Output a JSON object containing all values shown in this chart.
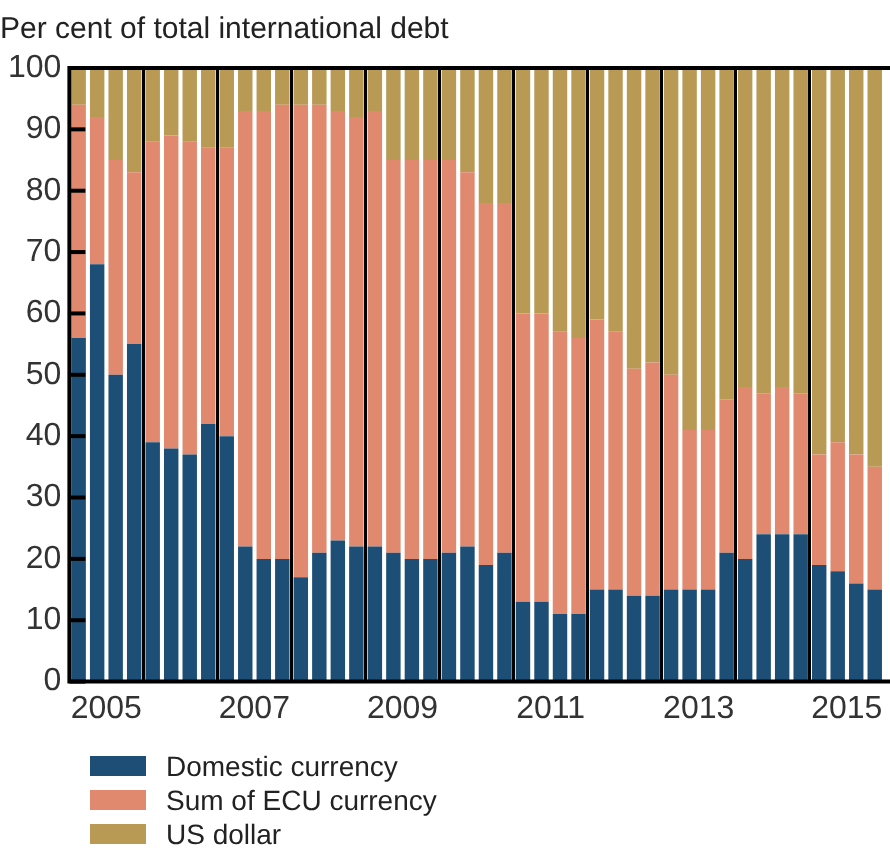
{
  "chart_data": {
    "type": "bar",
    "title": "Per cent of total international debt",
    "stacked": true,
    "grid": "x",
    "legend": "bottom",
    "categories": [
      null,
      "2005",
      null,
      null,
      null,
      null,
      null,
      null,
      null,
      "2007",
      null,
      null,
      null,
      null,
      null,
      null,
      null,
      "2009",
      null,
      null,
      null,
      null,
      null,
      null,
      null,
      "2011",
      null,
      null,
      null,
      null,
      null,
      null,
      null,
      "2013",
      null,
      null,
      null,
      null,
      null,
      null,
      null,
      "2015",
      null,
      null
    ],
    "ylim": [
      0,
      100
    ],
    "yticks": [
      0,
      10,
      20,
      30,
      40,
      50,
      60,
      70,
      80,
      90,
      100
    ],
    "series": [
      {
        "name": "Domestic currency",
        "color": "#1d4f76",
        "values": [
          56,
          68,
          50,
          55,
          39,
          38,
          37,
          42,
          40,
          22,
          20,
          20,
          17,
          21,
          23,
          22,
          22,
          21,
          20,
          20,
          21,
          22,
          19,
          21,
          13,
          13,
          11,
          11,
          15,
          15,
          14,
          14,
          15,
          15,
          15,
          21,
          20,
          24,
          24,
          24,
          19,
          18,
          16,
          15
        ]
      },
      {
        "name": "Sum of ECU currency",
        "color": "#e0896e",
        "values": [
          38,
          24,
          35,
          28,
          49,
          51,
          51,
          45,
          47,
          71,
          73,
          74,
          77,
          73,
          70,
          70,
          71,
          64,
          65,
          65,
          64,
          61,
          59,
          57,
          47,
          47,
          46,
          45,
          44,
          42,
          37,
          38,
          35,
          26,
          26,
          25,
          28,
          23,
          24,
          23,
          18,
          21,
          21,
          20
        ]
      },
      {
        "name": "US dollar",
        "color": "#b89a55",
        "values": [
          6,
          8,
          15,
          17,
          12,
          11,
          12,
          13,
          13,
          7,
          7,
          6,
          6,
          6,
          7,
          8,
          7,
          15,
          15,
          15,
          15,
          17,
          22,
          22,
          40,
          40,
          43,
          44,
          41,
          43,
          49,
          48,
          50,
          59,
          59,
          54,
          52,
          53,
          52,
          53,
          63,
          61,
          63,
          65
        ]
      }
    ]
  }
}
